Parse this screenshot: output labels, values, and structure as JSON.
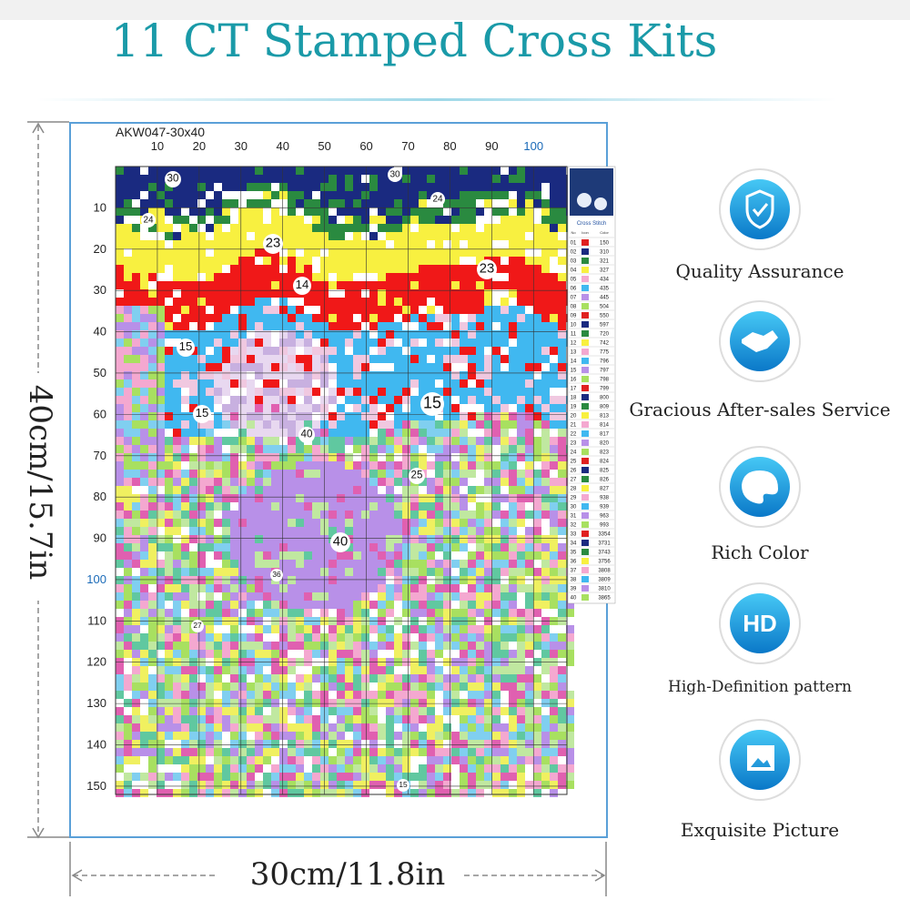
{
  "header": {
    "title": "11 CT Stamped Cross Kits"
  },
  "dimensions": {
    "height": "40cm/15.7in",
    "width": "30cm/11.8in"
  },
  "pattern": {
    "code": "AKW047-30x40",
    "column_labels": [
      10,
      20,
      30,
      40,
      50,
      60,
      70,
      80,
      90,
      100
    ],
    "row_labels": [
      10,
      20,
      30,
      40,
      50,
      60,
      70,
      80,
      90,
      100,
      110,
      120,
      130,
      140,
      150
    ],
    "symbol_labels": [
      "30",
      "30",
      "24",
      "24",
      "23",
      "23",
      "14",
      "15",
      "15",
      "15",
      "40",
      "25",
      "40",
      "36",
      "27",
      "15"
    ]
  },
  "legend": {
    "title": "Cross Stitch",
    "columns": [
      "No",
      "Icon",
      "Color"
    ],
    "rows": [
      [
        "01",
        "150"
      ],
      [
        "02",
        "310"
      ],
      [
        "03",
        "321"
      ],
      [
        "04",
        "327"
      ],
      [
        "05",
        "434"
      ],
      [
        "06",
        "435"
      ],
      [
        "07",
        "445"
      ],
      [
        "08",
        "504"
      ],
      [
        "09",
        "550"
      ],
      [
        "10",
        "597"
      ],
      [
        "11",
        "720"
      ],
      [
        "12",
        "742"
      ],
      [
        "13",
        "775"
      ],
      [
        "14",
        "796"
      ],
      [
        "15",
        "797"
      ],
      [
        "16",
        "798"
      ],
      [
        "17",
        "799"
      ],
      [
        "18",
        "800"
      ],
      [
        "19",
        "809"
      ],
      [
        "20",
        "813"
      ],
      [
        "21",
        "814"
      ],
      [
        "22",
        "817"
      ],
      [
        "23",
        "820"
      ],
      [
        "24",
        "823"
      ],
      [
        "25",
        "824"
      ],
      [
        "26",
        "825"
      ],
      [
        "27",
        "826"
      ],
      [
        "28",
        "827"
      ],
      [
        "29",
        "938"
      ],
      [
        "30",
        "939"
      ],
      [
        "31",
        "963"
      ],
      [
        "32",
        "993"
      ],
      [
        "33",
        "3354"
      ],
      [
        "34",
        "3731"
      ],
      [
        "35",
        "3743"
      ],
      [
        "36",
        "3756"
      ],
      [
        "37",
        "3808"
      ],
      [
        "38",
        "3809"
      ],
      [
        "39",
        "3810"
      ],
      [
        "40",
        "3865"
      ]
    ]
  },
  "features": [
    {
      "label": "Quality Assurance"
    },
    {
      "label": "Gracious After-sales Service"
    },
    {
      "label": "Rich Color"
    },
    {
      "label": "High-Definition pattern"
    },
    {
      "label": "Exquisite Picture"
    }
  ]
}
